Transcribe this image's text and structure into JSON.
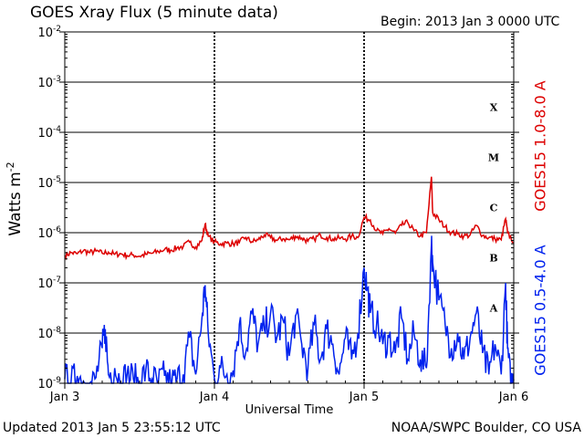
{
  "chart_data": {
    "type": "line",
    "title": "GOES Xray Flux (5 minute data)",
    "begin_label": "Begin:  2013 Jan 3 0000 UTC",
    "ylabel": "Watts m",
    "ylabel_sup": "-2",
    "xlabel": "Universal Time",
    "y_scale": "log",
    "ylim": [
      1e-09,
      0.01
    ],
    "xlim_hours": [
      0,
      72
    ],
    "grid": "horizontal at each decade; dashed vertical day boundaries",
    "y_tick_labels": [
      {
        "base": "10",
        "exp": "-9",
        "value": 1e-09
      },
      {
        "base": "10",
        "exp": "-8",
        "value": 1e-08
      },
      {
        "base": "10",
        "exp": "-7",
        "value": 1e-07
      },
      {
        "base": "10",
        "exp": "-6",
        "value": 1e-06
      },
      {
        "base": "10",
        "exp": "-5",
        "value": 1e-05
      },
      {
        "base": "10",
        "exp": "-4",
        "value": 0.0001
      },
      {
        "base": "10",
        "exp": "-3",
        "value": 0.001
      },
      {
        "base": "10",
        "exp": "-2",
        "value": 0.01
      }
    ],
    "x_tick_labels": [
      {
        "label": "Jan 3",
        "hour": 0
      },
      {
        "label": "Jan 4",
        "hour": 24
      },
      {
        "label": "Jan 5",
        "hour": 48
      },
      {
        "label": "Jan 6",
        "hour": 72
      }
    ],
    "flare_classes": [
      {
        "label": "A",
        "value": 3.16e-08
      },
      {
        "label": "B",
        "value": 3.16e-07
      },
      {
        "label": "C",
        "value": 3.16e-06
      },
      {
        "label": "M",
        "value": 3.16e-05
      },
      {
        "label": "X",
        "value": 0.000316
      }
    ],
    "series": [
      {
        "name": "GOES15 1.0-8.0 A",
        "color": "#dd0000",
        "points": [
          [
            0,
            3.5e-07
          ],
          [
            1,
            4e-07
          ],
          [
            2,
            3.8e-07
          ],
          [
            3,
            4.4e-07
          ],
          [
            4,
            4e-07
          ],
          [
            5,
            4.3e-07
          ],
          [
            6,
            3.9e-07
          ],
          [
            7,
            4.1e-07
          ],
          [
            8,
            3.7e-07
          ],
          [
            9,
            3.8e-07
          ],
          [
            10,
            3.5e-07
          ],
          [
            11,
            3.6e-07
          ],
          [
            12,
            3.4e-07
          ],
          [
            13,
            3.7e-07
          ],
          [
            14,
            3.9e-07
          ],
          [
            15,
            4.2e-07
          ],
          [
            16,
            4.6e-07
          ],
          [
            17,
            4.5e-07
          ],
          [
            18,
            5e-07
          ],
          [
            19,
            5.3e-07
          ],
          [
            20,
            6.5e-07
          ],
          [
            21,
            5.2e-07
          ],
          [
            22,
            7e-07
          ],
          [
            22.5,
            1.5e-06
          ],
          [
            23,
            8.5e-07
          ],
          [
            24,
            6.5e-07
          ],
          [
            25,
            6e-07
          ],
          [
            26,
            6.2e-07
          ],
          [
            27,
            6e-07
          ],
          [
            28,
            6.4e-07
          ],
          [
            29,
            8e-07
          ],
          [
            30,
            6.6e-07
          ],
          [
            31,
            7.2e-07
          ],
          [
            32,
            9e-07
          ],
          [
            33,
            8e-07
          ],
          [
            34,
            7e-07
          ],
          [
            35,
            7.6e-07
          ],
          [
            36,
            7.2e-07
          ],
          [
            37,
            8.5e-07
          ],
          [
            38,
            7.8e-07
          ],
          [
            39,
            6.8e-07
          ],
          [
            40,
            7.5e-07
          ],
          [
            41,
            9e-07
          ],
          [
            42,
            8e-07
          ],
          [
            43,
            7.5e-07
          ],
          [
            44,
            7.8e-07
          ],
          [
            45,
            7.5e-07
          ],
          [
            46,
            8.5e-07
          ],
          [
            47,
            8e-07
          ],
          [
            48,
            2e-06
          ],
          [
            49,
            1.8e-06
          ],
          [
            50,
            1.1e-06
          ],
          [
            51,
            9.5e-07
          ],
          [
            52,
            1.2e-06
          ],
          [
            53,
            9.8e-07
          ],
          [
            54,
            1.4e-06
          ],
          [
            55,
            1.6e-06
          ],
          [
            56,
            1.1e-06
          ],
          [
            57,
            8.5e-07
          ],
          [
            58,
            1e-06
          ],
          [
            58.8,
            1.3e-05
          ],
          [
            59,
            2.5e-06
          ],
          [
            60,
            1.8e-06
          ],
          [
            61,
            1.3e-06
          ],
          [
            62,
            1e-06
          ],
          [
            63,
            9.5e-07
          ],
          [
            64,
            8.5e-07
          ],
          [
            65,
            9e-07
          ],
          [
            66,
            1.4e-06
          ],
          [
            67,
            8.8e-07
          ],
          [
            68,
            8e-07
          ],
          [
            69,
            7.5e-07
          ],
          [
            70,
            7.2e-07
          ],
          [
            70.7,
            1.9e-06
          ],
          [
            71,
            1e-06
          ],
          [
            72,
            6.5e-07
          ]
        ]
      },
      {
        "name": "GOES15 0.5-4.0 A",
        "color": "#0022ee",
        "points": [
          [
            0,
            1.2e-09
          ],
          [
            1,
            1e-09
          ],
          [
            2,
            1.4e-09
          ],
          [
            3,
            1.1e-09
          ],
          [
            4,
            8e-10
          ],
          [
            5,
            1.3e-09
          ],
          [
            6,
            5e-09
          ],
          [
            6.5,
            1.2e-08
          ],
          [
            7,
            1.5e-09
          ],
          [
            8,
            2e-09
          ],
          [
            9,
            1e-09
          ],
          [
            10,
            1.5e-09
          ],
          [
            11,
            1.2e-09
          ],
          [
            12,
            1e-09
          ],
          [
            13,
            1.8e-09
          ],
          [
            14,
            1.2e-09
          ],
          [
            15,
            1e-09
          ],
          [
            16,
            1.4e-09
          ],
          [
            17,
            1e-09
          ],
          [
            18,
            1.2e-09
          ],
          [
            19,
            1.5e-09
          ],
          [
            20,
            8e-09
          ],
          [
            21,
            1.5e-09
          ],
          [
            22,
            2e-08
          ],
          [
            22.5,
            9e-08
          ],
          [
            23,
            1e-08
          ],
          [
            24,
            1.2e-09
          ],
          [
            25,
            2e-09
          ],
          [
            26,
            1.5e-09
          ],
          [
            27,
            1.8e-09
          ],
          [
            28,
            1.5e-08
          ],
          [
            29,
            4e-09
          ],
          [
            30,
            2.5e-08
          ],
          [
            31,
            6e-09
          ],
          [
            32,
            1.2e-08
          ],
          [
            33,
            2.5e-08
          ],
          [
            34,
            8e-09
          ],
          [
            35,
            1.8e-08
          ],
          [
            36,
            3.5e-09
          ],
          [
            37,
            2.2e-08
          ],
          [
            38,
            6e-09
          ],
          [
            39,
            2e-09
          ],
          [
            40,
            1.5e-08
          ],
          [
            41,
            3e-09
          ],
          [
            42,
            1.2e-08
          ],
          [
            43,
            6e-09
          ],
          [
            44,
            1.5e-09
          ],
          [
            45,
            8e-09
          ],
          [
            46,
            3e-09
          ],
          [
            47,
            1e-08
          ],
          [
            48,
            2e-07
          ],
          [
            48.5,
            8e-08
          ],
          [
            49,
            2.5e-08
          ],
          [
            50,
            1.5e-08
          ],
          [
            51,
            6e-09
          ],
          [
            52,
            8e-09
          ],
          [
            53,
            4e-09
          ],
          [
            54,
            2e-08
          ],
          [
            55,
            3e-09
          ],
          [
            56,
            1e-08
          ],
          [
            57,
            3e-09
          ],
          [
            58,
            2e-09
          ],
          [
            58.8,
            6e-07
          ],
          [
            59,
            2.5e-07
          ],
          [
            60,
            4.5e-08
          ],
          [
            61,
            1.5e-08
          ],
          [
            62,
            5e-09
          ],
          [
            63,
            1e-08
          ],
          [
            64,
            3e-09
          ],
          [
            65,
            8e-09
          ],
          [
            66,
            2.5e-08
          ],
          [
            67,
            4e-09
          ],
          [
            68,
            1.5e-09
          ],
          [
            69,
            6e-09
          ],
          [
            70,
            1.5e-09
          ],
          [
            70.7,
            1e-07
          ],
          [
            71,
            5e-09
          ],
          [
            71.5,
            1e-09
          ],
          [
            72,
            1.2e-09
          ]
        ]
      }
    ],
    "footer_left": "Updated 2013 Jan  5 23:55:12 UTC",
    "footer_right": "NOAA/SWPC Boulder, CO USA"
  }
}
